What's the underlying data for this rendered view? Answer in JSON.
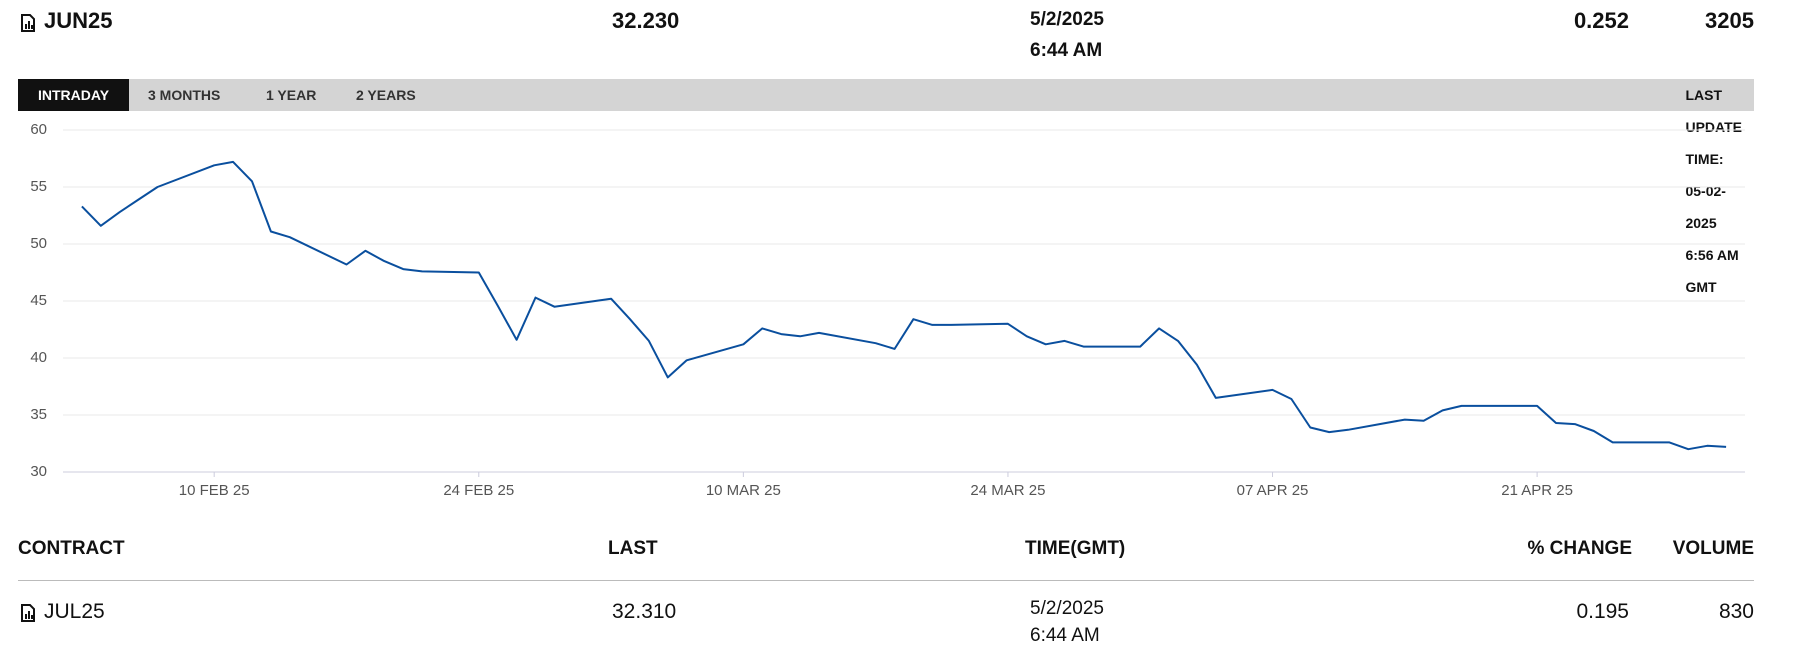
{
  "header": {
    "contract": "JUN25",
    "last": "32.230",
    "date": "5/2/2025",
    "time": "6:44 AM",
    "change": "0.252",
    "volume": "3205"
  },
  "tabs": [
    "INTRADAY",
    "3 MONTHS",
    "1 YEAR",
    "2 YEARS"
  ],
  "last_update": "LAST UPDATE TIME: 05-02-2025 6:56 AM GMT",
  "chart_data": {
    "type": "line",
    "color": "#0a4f9e",
    "grid": true,
    "x": [
      "2025-02-03",
      "2025-02-04",
      "2025-02-05",
      "2025-02-06",
      "2025-02-07",
      "2025-02-10",
      "2025-02-11",
      "2025-02-12",
      "2025-02-13",
      "2025-02-14",
      "2025-02-17",
      "2025-02-18",
      "2025-02-19",
      "2025-02-20",
      "2025-02-21",
      "2025-02-24",
      "2025-02-25",
      "2025-02-26",
      "2025-02-27",
      "2025-02-28",
      "2025-03-03",
      "2025-03-04",
      "2025-03-05",
      "2025-03-06",
      "2025-03-07",
      "2025-03-10",
      "2025-03-11",
      "2025-03-12",
      "2025-03-13",
      "2025-03-14",
      "2025-03-17",
      "2025-03-18",
      "2025-03-19",
      "2025-03-20",
      "2025-03-21",
      "2025-03-24",
      "2025-03-25",
      "2025-03-26",
      "2025-03-27",
      "2025-03-28",
      "2025-03-31",
      "2025-04-01",
      "2025-04-02",
      "2025-04-03",
      "2025-04-04",
      "2025-04-07",
      "2025-04-08",
      "2025-04-09",
      "2025-04-10",
      "2025-04-11",
      "2025-04-14",
      "2025-04-15",
      "2025-04-16",
      "2025-04-17",
      "2025-04-21",
      "2025-04-22",
      "2025-04-23",
      "2025-04-24",
      "2025-04-25",
      "2025-04-28",
      "2025-04-29",
      "2025-04-30",
      "2025-05-01"
    ],
    "values": [
      53.3,
      51.6,
      52.8,
      53.9,
      55.0,
      56.9,
      57.2,
      55.5,
      51.1,
      50.6,
      48.2,
      49.4,
      48.5,
      47.8,
      47.6,
      47.5,
      44.6,
      41.6,
      45.3,
      44.5,
      45.2,
      43.4,
      41.5,
      38.3,
      39.8,
      41.2,
      42.6,
      42.1,
      41.9,
      42.2,
      41.3,
      40.8,
      43.4,
      42.9,
      42.9,
      43.0,
      41.9,
      41.2,
      41.5,
      41.0,
      41.0,
      42.6,
      41.5,
      39.4,
      36.5,
      37.2,
      36.4,
      33.9,
      33.5,
      33.7,
      34.6,
      34.5,
      35.4,
      35.8,
      35.8,
      34.3,
      34.2,
      33.6,
      32.6,
      32.6,
      32.0,
      32.3,
      32.2
    ],
    "xlim": [
      "2025-02-02",
      "2025-05-02"
    ],
    "xticks": [
      {
        "value": "2025-02-10",
        "label": "10 FEB 25"
      },
      {
        "value": "2025-02-24",
        "label": "24 FEB 25"
      },
      {
        "value": "2025-03-10",
        "label": "10 MAR 25"
      },
      {
        "value": "2025-03-24",
        "label": "24 MAR 25"
      },
      {
        "value": "2025-04-07",
        "label": "07 APR 25"
      },
      {
        "value": "2025-04-21",
        "label": "21 APR 25"
      }
    ],
    "ylim": [
      30,
      60
    ],
    "yticks": [
      30,
      35,
      40,
      45,
      50,
      55,
      60
    ]
  },
  "table": {
    "columns": [
      "CONTRACT",
      "LAST",
      "TIME(GMT)",
      "% CHANGE",
      "VOLUME"
    ],
    "rows": [
      {
        "contract": "JUL25",
        "last": "32.310",
        "date": "5/2/2025",
        "time": "6:44 AM",
        "change": "0.195",
        "volume": "830"
      }
    ]
  }
}
